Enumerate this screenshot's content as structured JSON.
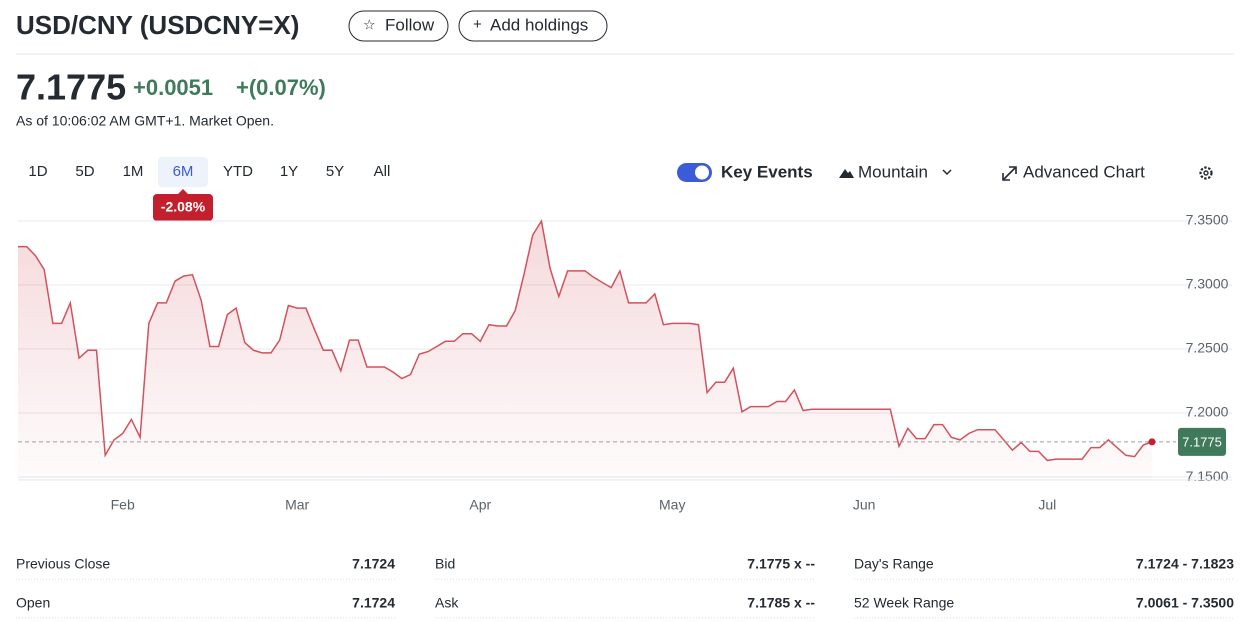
{
  "header": {
    "title": "USD/CNY (USDCNY=X)",
    "follow": "Follow",
    "add": "Add holdings"
  },
  "quote": {
    "price": "7.1775",
    "change": "+0.0051",
    "change_pct": "+(0.07%)",
    "as_of": "As of 10:06:02 AM GMT+1. Market Open."
  },
  "range_tabs": [
    "1D",
    "5D",
    "1M",
    "6M",
    "YTD",
    "1Y",
    "5Y",
    "All"
  ],
  "active_tab": 3,
  "range_change": "-2.08%",
  "toolbar": {
    "key_events": "Key Events",
    "chart_style": "Mountain",
    "advanced": "Advanced Chart"
  },
  "chart_data": {
    "type": "area",
    "color": "#d2525d",
    "ylim": [
      7.1477,
      7.3664
    ],
    "yticks": [
      {
        "value": 7.35,
        "label": "7.3500"
      },
      {
        "value": 7.3,
        "label": "7.3000"
      },
      {
        "value": 7.25,
        "label": "7.2500"
      },
      {
        "value": 7.2,
        "label": "7.2000"
      },
      {
        "value": 7.15,
        "label": "7.1500"
      }
    ],
    "grid": true,
    "categories": [
      null,
      null,
      null,
      null,
      null,
      null,
      null,
      null,
      null,
      null,
      null,
      null,
      "Feb",
      null,
      null,
      null,
      null,
      null,
      null,
      null,
      null,
      null,
      null,
      null,
      null,
      null,
      null,
      null,
      null,
      null,
      null,
      null,
      "Mar",
      null,
      null,
      null,
      null,
      null,
      null,
      null,
      null,
      null,
      null,
      null,
      null,
      null,
      null,
      null,
      null,
      null,
      null,
      null,
      null,
      "Apr",
      null,
      null,
      null,
      null,
      null,
      null,
      null,
      null,
      null,
      null,
      null,
      null,
      null,
      null,
      null,
      null,
      null,
      null,
      null,
      null,
      null,
      "May",
      null,
      null,
      null,
      null,
      null,
      null,
      null,
      null,
      null,
      null,
      null,
      null,
      null,
      null,
      null,
      null,
      null,
      null,
      null,
      null,
      null,
      "Jun",
      null,
      null,
      null,
      null,
      null,
      null,
      null,
      null,
      null,
      null,
      null,
      null,
      null,
      null,
      null,
      null,
      null,
      null,
      null,
      null,
      "Jul",
      null,
      null,
      null,
      null,
      null,
      null,
      null,
      null,
      null,
      null,
      null,
      null
    ],
    "values": [
      7.33,
      7.33,
      7.323,
      7.312,
      7.27,
      7.27,
      7.286,
      7.243,
      7.249,
      7.249,
      7.167,
      7.179,
      7.184,
      7.195,
      7.181,
      7.27,
      7.286,
      7.286,
      7.303,
      7.307,
      7.308,
      7.288,
      7.252,
      7.252,
      7.277,
      7.282,
      7.255,
      7.249,
      7.247,
      7.247,
      7.257,
      7.284,
      7.282,
      7.282,
      7.265,
      7.249,
      7.249,
      7.233,
      7.257,
      7.257,
      7.236,
      7.236,
      7.236,
      7.232,
      7.227,
      7.23,
      7.246,
      7.248,
      7.252,
      7.256,
      7.256,
      7.262,
      7.262,
      7.256,
      7.269,
      7.268,
      7.268,
      7.28,
      7.308,
      7.339,
      7.35,
      7.313,
      7.291,
      7.311,
      7.311,
      7.311,
      7.306,
      7.302,
      7.298,
      7.311,
      7.286,
      7.286,
      7.286,
      7.293,
      7.269,
      7.27,
      7.27,
      7.27,
      7.269,
      7.216,
      7.224,
      7.224,
      7.235,
      7.201,
      7.205,
      7.205,
      7.205,
      7.209,
      7.209,
      7.218,
      7.202,
      7.203,
      7.203,
      7.203,
      7.203,
      7.203,
      7.203,
      7.203,
      7.203,
      7.203,
      7.203,
      7.174,
      7.188,
      7.18,
      7.18,
      7.191,
      7.191,
      7.181,
      7.179,
      7.184,
      7.187,
      7.187,
      7.187,
      7.179,
      7.171,
      7.177,
      7.17,
      7.17,
      7.163,
      7.164,
      7.164,
      7.164,
      7.164,
      7.173,
      7.173,
      7.179,
      7.173,
      7.167,
      7.166,
      7.175,
      7.1775
    ]
  },
  "stats": [
    [
      [
        "Previous Close",
        "7.1724"
      ],
      [
        "Open",
        "7.1724"
      ]
    ],
    [
      [
        "Bid",
        "7.1775 x --"
      ],
      [
        "Ask",
        "7.1785 x --"
      ]
    ],
    [
      [
        "Day's Range",
        "7.1724 - 7.1823"
      ],
      [
        "52 Week Range",
        "7.0061 - 7.3500"
      ]
    ]
  ]
}
